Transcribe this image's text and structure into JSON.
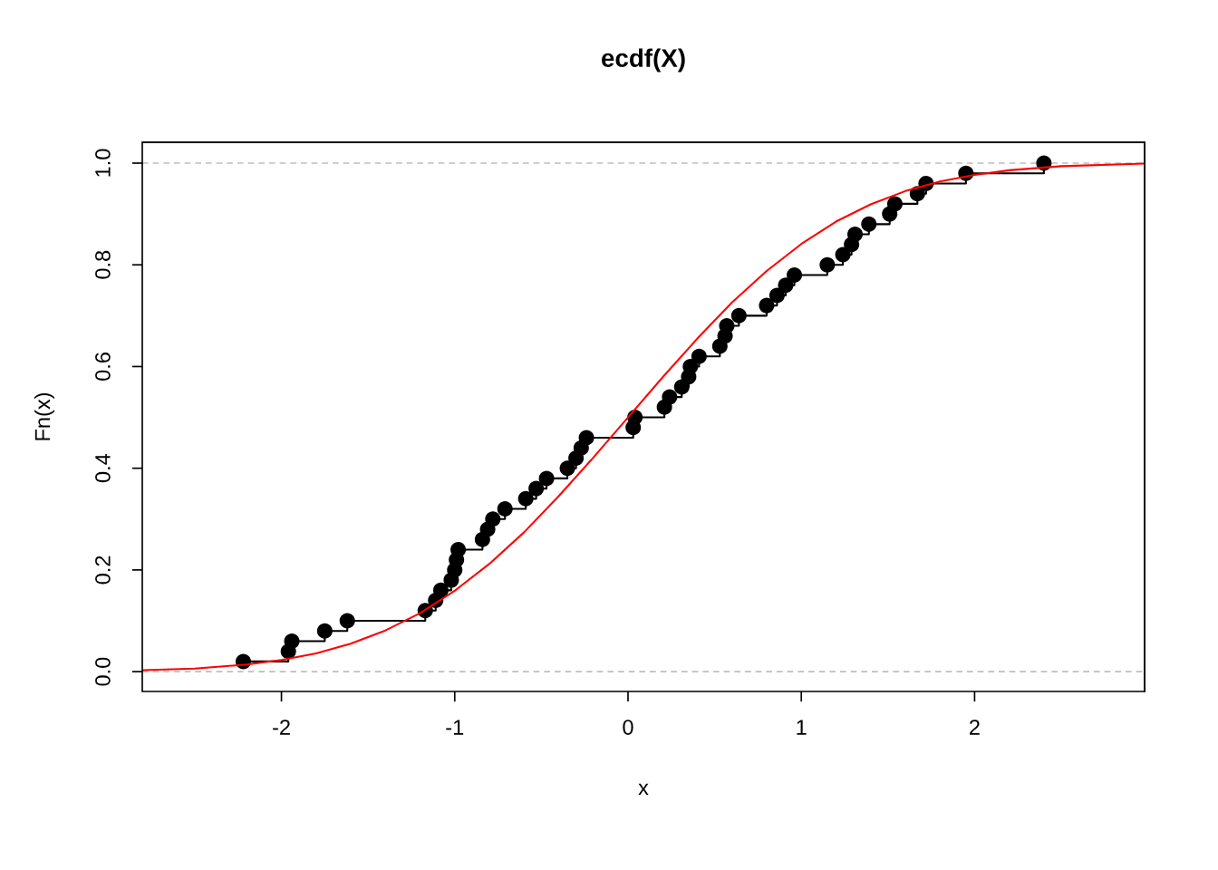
{
  "chart_data": {
    "type": "step",
    "title": "ecdf(X)",
    "xlabel": "x",
    "ylabel": "Fn(x)",
    "xlim": [
      -2.803,
      2.981
    ],
    "ylim": [
      -0.039,
      1.041
    ],
    "xticks": [
      -2,
      -1,
      0,
      1,
      2
    ],
    "yticks": [
      {
        "value": 0,
        "label": "0.0"
      },
      {
        "value": 0.2,
        "label": "0.2"
      },
      {
        "value": 0.4,
        "label": "0.4"
      },
      {
        "value": 0.6,
        "label": "0.6"
      },
      {
        "value": 0.8,
        "label": "0.8"
      },
      {
        "value": 1,
        "label": "1.0"
      }
    ],
    "legend": false,
    "ref_lines": [
      {
        "axis": "y",
        "value": 0,
        "label": null,
        "color": "#bebebe",
        "line_style": "dashed"
      },
      {
        "axis": "y",
        "value": 1,
        "label": null,
        "color": "#bebebe",
        "line_style": "dashed"
      }
    ],
    "series": [
      {
        "color": "#000000",
        "marker": "circle",
        "x": [
          -2.22,
          -1.96,
          -1.94,
          -1.75,
          -1.62,
          -1.17,
          -1.11,
          -1.08,
          -1.02,
          -1.0,
          -0.99,
          -0.98,
          -0.84,
          -0.81,
          -0.78,
          -0.71,
          -0.59,
          -0.53,
          -0.47,
          -0.35,
          -0.3,
          -0.27,
          -0.24,
          0.03,
          0.04,
          0.21,
          0.24,
          0.31,
          0.35,
          0.36,
          0.41,
          0.53,
          0.56,
          0.57,
          0.64,
          0.8,
          0.86,
          0.91,
          0.96,
          1.15,
          1.24,
          1.29,
          1.31,
          1.39,
          1.51,
          1.54,
          1.67,
          1.72,
          1.95,
          2.4
        ],
        "values": [
          0.02,
          0.04,
          0.06,
          0.08,
          0.1,
          0.12,
          0.14,
          0.16,
          0.18,
          0.2,
          0.22,
          0.24,
          0.26,
          0.28,
          0.3,
          0.32,
          0.34,
          0.36,
          0.38,
          0.4,
          0.42,
          0.44,
          0.46,
          0.48,
          0.5,
          0.52,
          0.54,
          0.56,
          0.58,
          0.6,
          0.62,
          0.64,
          0.66,
          0.68,
          0.7,
          0.72,
          0.74,
          0.76,
          0.78,
          0.8,
          0.82,
          0.84,
          0.86,
          0.88,
          0.9,
          0.92,
          0.94,
          0.96,
          0.98,
          1.0
        ]
      },
      {
        "type": "line",
        "color": "#ff0000",
        "marker": "none",
        "x": [
          -2.8,
          -2.5,
          -2.2,
          -2.0,
          -1.8,
          -1.6,
          -1.4,
          -1.2,
          -1.0,
          -0.8,
          -0.6,
          -0.4,
          -0.2,
          0.0,
          0.2,
          0.4,
          0.6,
          0.8,
          1.0,
          1.2,
          1.4,
          1.6,
          1.8,
          2.0,
          2.2,
          2.5,
          2.98
        ],
        "values": [
          0.003,
          0.006,
          0.014,
          0.023,
          0.036,
          0.055,
          0.081,
          0.115,
          0.159,
          0.212,
          0.274,
          0.345,
          0.421,
          0.5,
          0.579,
          0.655,
          0.726,
          0.788,
          0.841,
          0.885,
          0.919,
          0.945,
          0.964,
          0.977,
          0.986,
          0.994,
          0.999
        ]
      }
    ]
  }
}
